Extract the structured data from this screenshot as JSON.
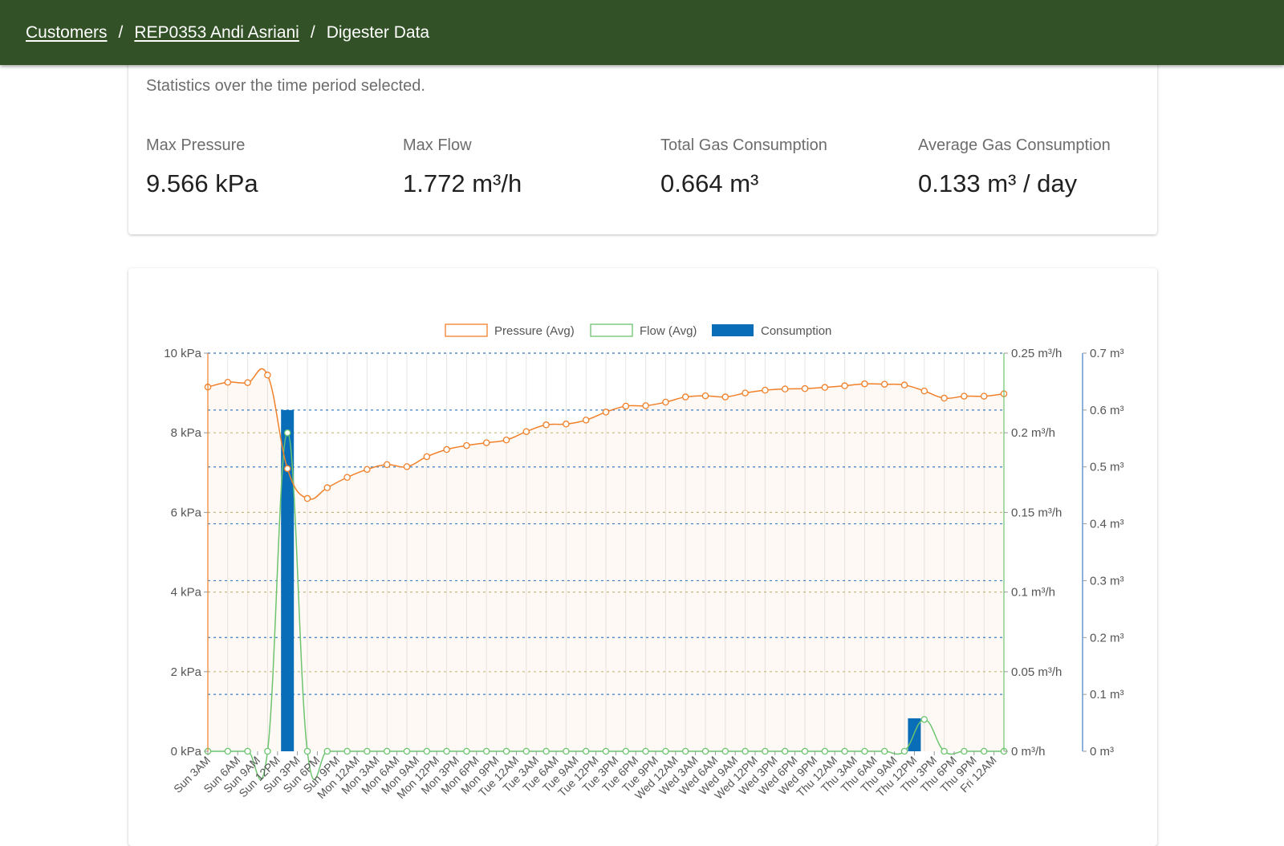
{
  "breadcrumb": {
    "customers": "Customers",
    "customer": "REP0353 Andi Asriani",
    "current": "Digester Data",
    "separator": "/"
  },
  "stats": {
    "subtitle": "Statistics over the time period selected.",
    "items": [
      {
        "label": "Max Pressure",
        "value": "9.566 kPa"
      },
      {
        "label": "Max Flow",
        "value": "1.772 m³/h"
      },
      {
        "label": "Total Gas Consumption",
        "value": "0.664 m³"
      },
      {
        "label": "Average Gas Consumption",
        "value": "0.133 m³ / day"
      }
    ]
  },
  "colors": {
    "header": "#325126",
    "pressure": "#f0802a",
    "flow": "#6cc46e",
    "consumption": "#0a6db8"
  },
  "chart_data": {
    "type": "bar+line",
    "legend_position": "top-center",
    "categories": [
      "Sun 3AM",
      "Sun 6AM",
      "Sun 9AM",
      "Sun 12PM",
      "Sun 3PM",
      "Sun 6PM",
      "Sun 9PM",
      "Mon 12AM",
      "Mon 3AM",
      "Mon 6AM",
      "Mon 9AM",
      "Mon 12PM",
      "Mon 3PM",
      "Mon 6PM",
      "Mon 9PM",
      "Tue 12AM",
      "Tue 3AM",
      "Tue 6AM",
      "Tue 9AM",
      "Tue 12PM",
      "Tue 3PM",
      "Tue 6PM",
      "Tue 9PM",
      "Wed 12AM",
      "Wed 3AM",
      "Wed 6AM",
      "Wed 9AM",
      "Wed 12PM",
      "Wed 3PM",
      "Wed 6PM",
      "Wed 9PM",
      "Thu 12AM",
      "Thu 3AM",
      "Thu 6AM",
      "Thu 9AM",
      "Thu 12PM",
      "Thu 3PM",
      "Thu 6PM",
      "Thu 9PM",
      "Fri 12AM"
    ],
    "x": [
      0,
      1.5,
      2.5,
      3.5,
      4.5,
      5.5,
      6.5,
      7.5,
      8.5,
      9.5,
      10.5,
      11.5,
      12.5,
      13.5,
      14.5,
      15.5,
      16.5,
      17.5,
      18.5,
      19.5,
      20.5,
      21.5,
      22.5,
      23.5,
      24.5,
      25.5,
      26.5,
      27.5,
      28.5,
      29.5,
      30.5,
      31.5,
      32.5,
      33.5,
      34.5,
      35.5,
      36.5,
      37.5,
      38.5,
      39.5
    ],
    "axes": {
      "pressure": {
        "min": 0,
        "max": 10,
        "ticks": [
          "0 kPa",
          "2 kPa",
          "4 kPa",
          "6 kPa",
          "8 kPa",
          "10 kPa"
        ]
      },
      "flow": {
        "min": 0,
        "max": 0.25,
        "ticks": [
          "0 m³/h",
          "0.05 m³/h",
          "0.1 m³/h",
          "0.15 m³/h",
          "0.2 m³/h",
          "0.25 m³/h"
        ]
      },
      "consumption": {
        "min": 0,
        "max": 0.7,
        "ticks": [
          "0 m³",
          "0.1 m³",
          "0.2 m³",
          "0.3 m³",
          "0.4 m³",
          "0.5 m³",
          "0.6 m³",
          "0.7 m³"
        ]
      }
    },
    "grid": true,
    "series": [
      {
        "name": "Pressure (Avg)",
        "axis": "pressure",
        "kind": "line",
        "points": [
          [
            0,
            9.15
          ],
          [
            1,
            9.27
          ],
          [
            2,
            9.26
          ],
          [
            3,
            9.45
          ],
          [
            4,
            7.1
          ],
          [
            5,
            6.35
          ],
          [
            6,
            6.62
          ],
          [
            7,
            6.88
          ],
          [
            8,
            7.08
          ],
          [
            9,
            7.2
          ],
          [
            10,
            7.15
          ],
          [
            11,
            7.4
          ],
          [
            12,
            7.58
          ],
          [
            13,
            7.68
          ],
          [
            14,
            7.75
          ],
          [
            15,
            7.82
          ],
          [
            16,
            8.03
          ],
          [
            17,
            8.2
          ],
          [
            18,
            8.22
          ],
          [
            19,
            8.32
          ],
          [
            20,
            8.52
          ],
          [
            21,
            8.67
          ],
          [
            22,
            8.68
          ],
          [
            23,
            8.77
          ],
          [
            24,
            8.9
          ],
          [
            25,
            8.93
          ],
          [
            26,
            8.9
          ],
          [
            27,
            9.0
          ],
          [
            28,
            9.07
          ],
          [
            29,
            9.1
          ],
          [
            30,
            9.11
          ],
          [
            31,
            9.14
          ],
          [
            32,
            9.18
          ],
          [
            33,
            9.23
          ],
          [
            34,
            9.22
          ],
          [
            35,
            9.2
          ],
          [
            36,
            9.05
          ],
          [
            37,
            8.87
          ],
          [
            38,
            8.92
          ],
          [
            39,
            8.92
          ],
          [
            40,
            8.98
          ]
        ]
      },
      {
        "name": "Flow (Avg)",
        "axis": "flow",
        "kind": "line",
        "points": [
          [
            0,
            0
          ],
          [
            1,
            0
          ],
          [
            2,
            0
          ],
          [
            3,
            0
          ],
          [
            4,
            0.2
          ],
          [
            5,
            0
          ],
          [
            6,
            0
          ],
          [
            7,
            0
          ],
          [
            8,
            0
          ],
          [
            9,
            0
          ],
          [
            10,
            0
          ],
          [
            11,
            0
          ],
          [
            12,
            0
          ],
          [
            13,
            0
          ],
          [
            14,
            0
          ],
          [
            15,
            0
          ],
          [
            16,
            0
          ],
          [
            17,
            0
          ],
          [
            18,
            0
          ],
          [
            19,
            0
          ],
          [
            20,
            0
          ],
          [
            21,
            0
          ],
          [
            22,
            0
          ],
          [
            23,
            0
          ],
          [
            24,
            0
          ],
          [
            25,
            0
          ],
          [
            26,
            0
          ],
          [
            27,
            0
          ],
          [
            28,
            0
          ],
          [
            29,
            0
          ],
          [
            30,
            0
          ],
          [
            31,
            0
          ],
          [
            32,
            0
          ],
          [
            33,
            0
          ],
          [
            34,
            0
          ],
          [
            35,
            0
          ],
          [
            36,
            0.02
          ],
          [
            37,
            0
          ],
          [
            38,
            0
          ],
          [
            39,
            0
          ],
          [
            40,
            0
          ]
        ]
      },
      {
        "name": "Consumption",
        "axis": "consumption",
        "kind": "bar",
        "points": [
          [
            4,
            0.6
          ],
          [
            35.5,
            0.058
          ]
        ]
      }
    ]
  }
}
